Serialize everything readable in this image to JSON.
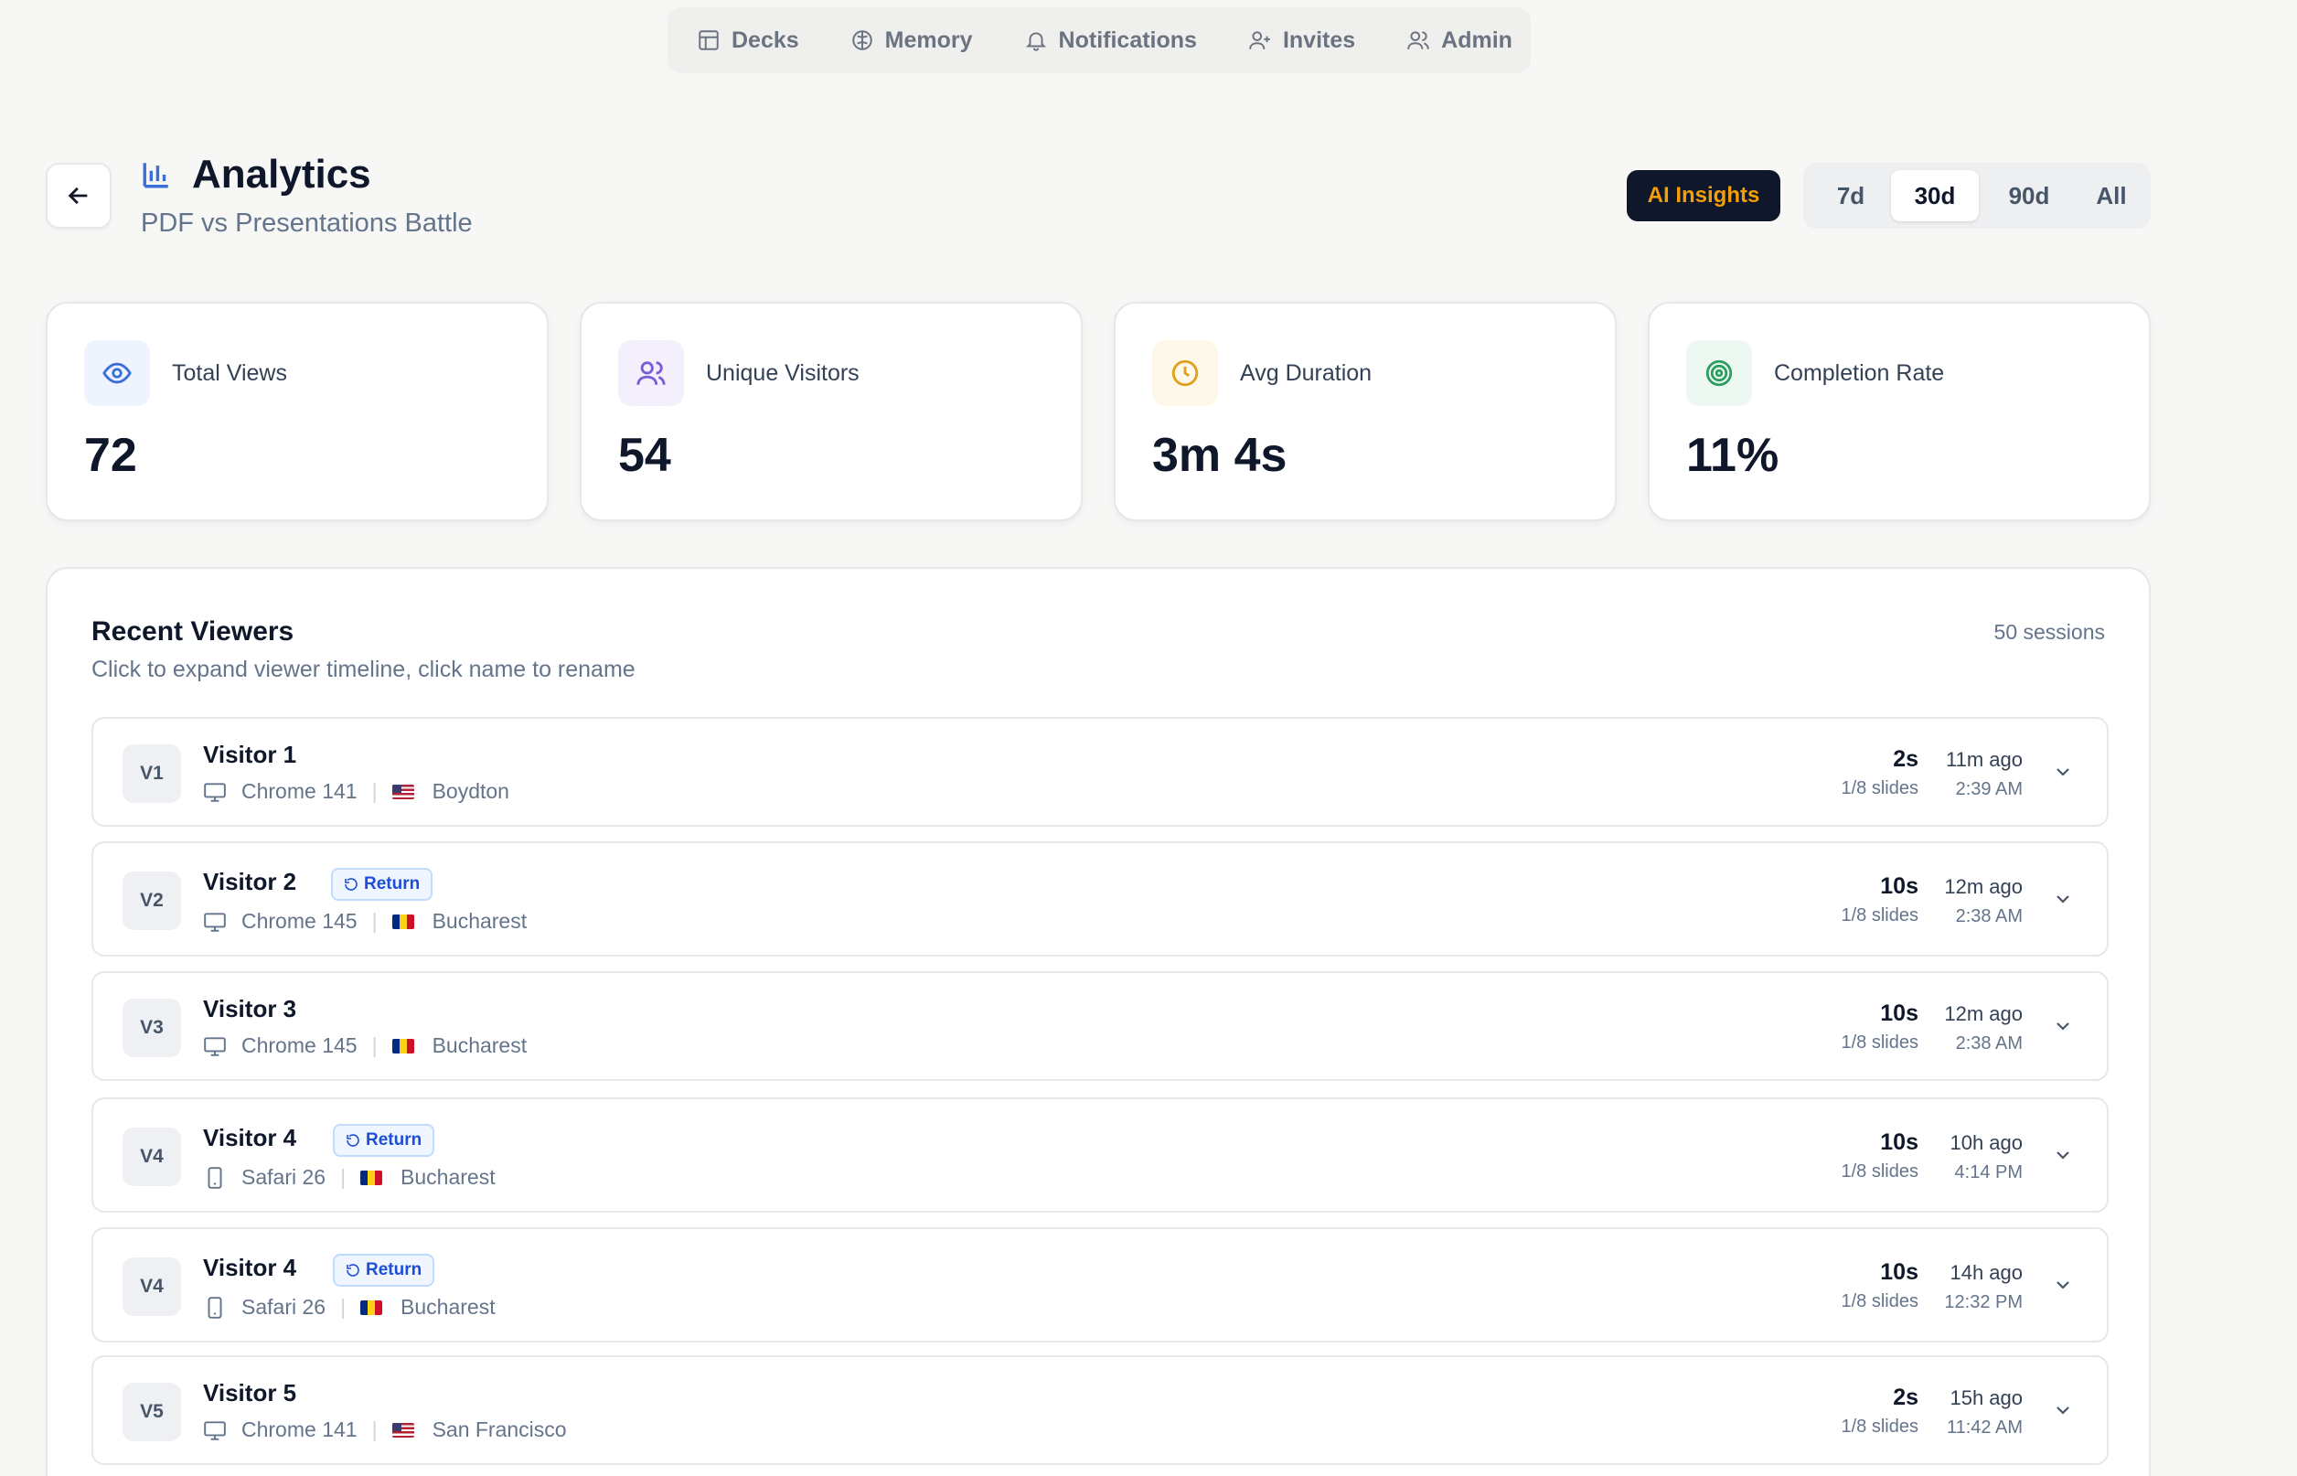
{
  "nav": {
    "items": [
      {
        "label": "Decks",
        "icon": "layout-icon"
      },
      {
        "label": "Memory",
        "icon": "brain-icon"
      },
      {
        "label": "Notifications",
        "icon": "bell-icon"
      },
      {
        "label": "Invites",
        "icon": "user-plus-icon"
      },
      {
        "label": "Admin",
        "icon": "users-icon"
      }
    ]
  },
  "header": {
    "title": "Analytics",
    "subtitle": "PDF vs Presentations Battle",
    "ai_button": "AI Insights",
    "ranges": [
      "7d",
      "30d",
      "90d",
      "All"
    ],
    "active_range": "30d"
  },
  "stats": [
    {
      "label": "Total Views",
      "value": "72",
      "icon": "eye-icon",
      "color": "#3b6fd8",
      "bg": "#eef3fd"
    },
    {
      "label": "Unique Visitors",
      "value": "54",
      "icon": "users-icon",
      "color": "#7c5cd6",
      "bg": "#f3effc"
    },
    {
      "label": "Avg Duration",
      "value": "3m 4s",
      "icon": "clock-icon",
      "color": "#e0a019",
      "bg": "#fdf8ea"
    },
    {
      "label": "Completion Rate",
      "value": "11%",
      "icon": "target-icon",
      "color": "#2f9e63",
      "bg": "#ecf8f1"
    }
  ],
  "viewers": {
    "title": "Recent Viewers",
    "description": "Click to expand viewer timeline, click name to rename",
    "count": "50 sessions",
    "return_label": "Return",
    "rows": [
      {
        "initials": "V1",
        "name": "Visitor 1",
        "return": false,
        "device": "desktop",
        "browser": "Chrome 141",
        "flag": "us",
        "city": "Boydton",
        "duration": "2s",
        "slides": "1/8 slides",
        "ago": "11m ago",
        "time": "2:39 AM"
      },
      {
        "initials": "V2",
        "name": "Visitor 2",
        "return": true,
        "device": "desktop",
        "browser": "Chrome 145",
        "flag": "ro",
        "city": "Bucharest",
        "duration": "10s",
        "slides": "1/8 slides",
        "ago": "12m ago",
        "time": "2:38 AM"
      },
      {
        "initials": "V3",
        "name": "Visitor 3",
        "return": false,
        "device": "desktop",
        "browser": "Chrome 145",
        "flag": "ro",
        "city": "Bucharest",
        "duration": "10s",
        "slides": "1/8 slides",
        "ago": "12m ago",
        "time": "2:38 AM"
      },
      {
        "initials": "V4",
        "name": "Visitor 4",
        "return": true,
        "device": "mobile",
        "browser": "Safari 26",
        "flag": "ro",
        "city": "Bucharest",
        "duration": "10s",
        "slides": "1/8 slides",
        "ago": "10h ago",
        "time": "4:14 PM"
      },
      {
        "initials": "V4",
        "name": "Visitor 4",
        "return": true,
        "device": "mobile",
        "browser": "Safari 26",
        "flag": "ro",
        "city": "Bucharest",
        "duration": "10s",
        "slides": "1/8 slides",
        "ago": "14h ago",
        "time": "12:32 PM"
      },
      {
        "initials": "V5",
        "name": "Visitor 5",
        "return": false,
        "device": "desktop",
        "browser": "Chrome 141",
        "flag": "us",
        "city": "San Francisco",
        "duration": "2s",
        "slides": "1/8 slides",
        "ago": "15h ago",
        "time": "11:42 AM"
      }
    ]
  }
}
